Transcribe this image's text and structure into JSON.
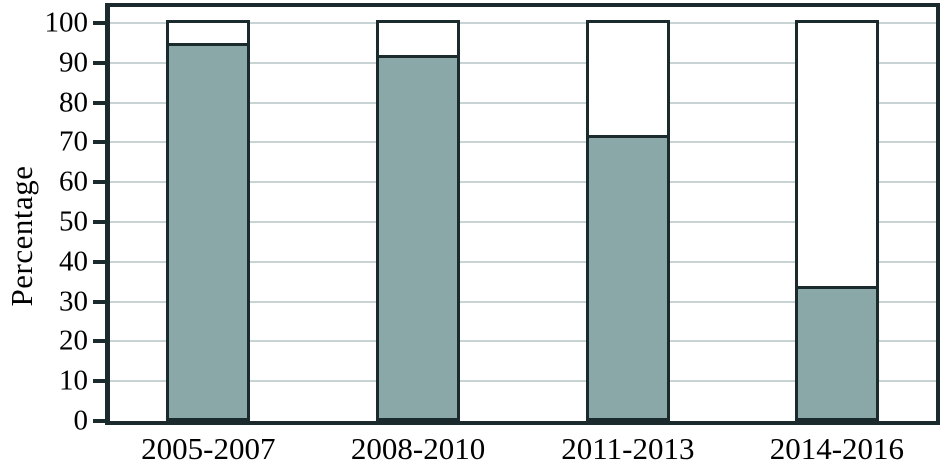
{
  "axes": {
    "y_title": "Percentage",
    "y_ticks": [
      0,
      10,
      20,
      30,
      40,
      50,
      60,
      70,
      80,
      90,
      100
    ],
    "x_labels": [
      "2005-2007",
      "2008-2010",
      "2011-2013",
      "2014-2016"
    ]
  },
  "chart_data": {
    "type": "bar",
    "stacked": true,
    "categories": [
      "2005-2007",
      "2008-2010",
      "2011-2013",
      "2014-2016"
    ],
    "series": [
      {
        "name": "shaded-segment",
        "color": "#8BA8A8",
        "values": [
          95,
          92,
          71.7,
          33.3
        ]
      },
      {
        "name": "unshaded-segment",
        "color": "#FFFFFF",
        "values": [
          5,
          8,
          28.3,
          66.7
        ]
      }
    ],
    "title": "",
    "xlabel": "",
    "ylabel": "Percentage",
    "ylim": [
      0,
      100
    ],
    "grid": true,
    "legend": false
  },
  "colors": {
    "frame": "#1B2A2D",
    "gridline": "#C8D4D4",
    "bar_fill": "#8BA8A8",
    "background": "#FFFFFF"
  }
}
